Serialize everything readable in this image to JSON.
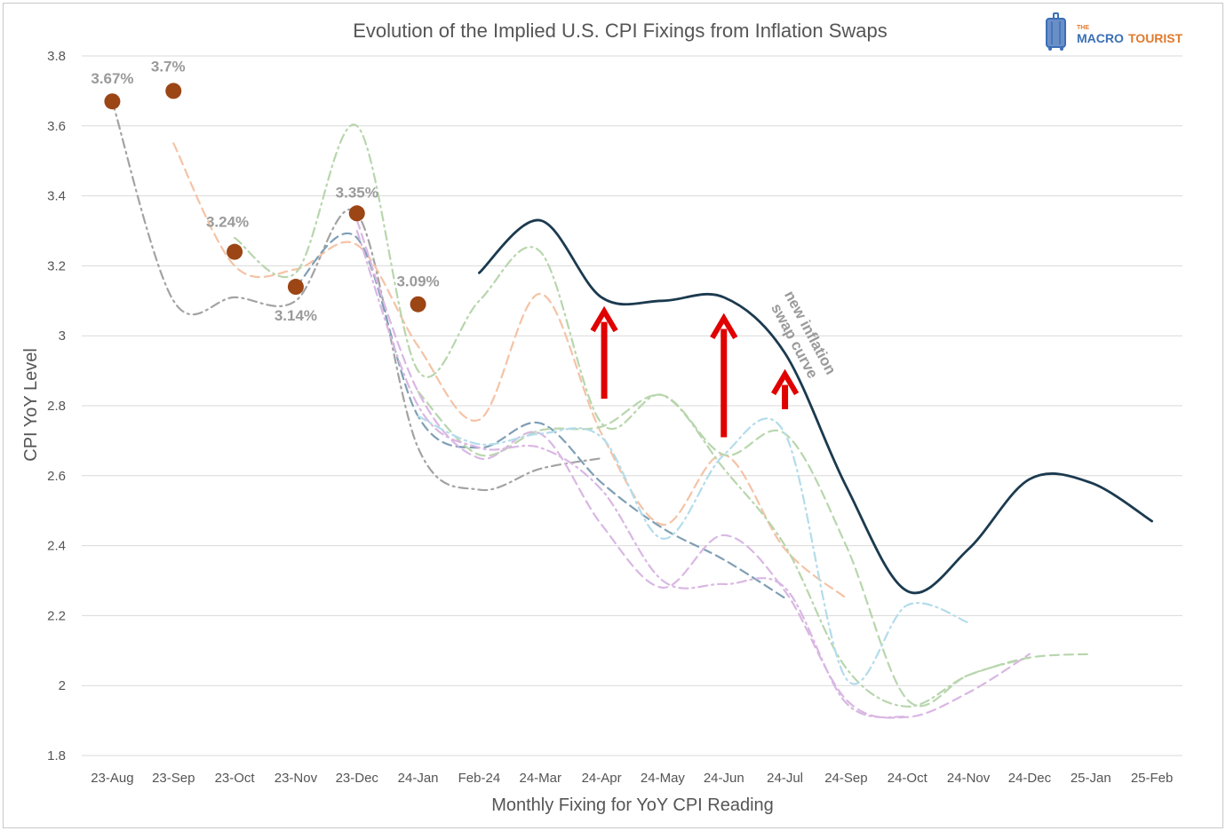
{
  "chart_data": {
    "type": "line",
    "title": "Evolution of the Implied U.S. CPI Fixings from Inflation Swaps",
    "xlabel": "Monthly Fixing for YoY CPI Reading",
    "ylabel": "CPI YoY Level",
    "ylim": [
      1.8,
      3.8
    ],
    "yticks": [
      "1.8",
      "2",
      "2.2",
      "2.4",
      "2.6",
      "2.8",
      "3",
      "3.2",
      "3.4",
      "3.6",
      "3.8"
    ],
    "grid": true,
    "categories": [
      "23-Aug",
      "23-Sep",
      "23-Oct",
      "23-Nov",
      "23-Dec",
      "24-Jan",
      "Feb-24",
      "24-Mar",
      "24-Apr",
      "24-May",
      "24-Jun",
      "24-Jul",
      "24-Sep",
      "24-Oct",
      "24-Nov",
      "24-Dec",
      "25-Jan",
      "25-Feb"
    ],
    "series": [
      {
        "color": "#a3a3a3",
        "dash": "10,5,2,5",
        "values": [
          3.67,
          3.1,
          3.11,
          3.1,
          3.35,
          2.68,
          2.56,
          2.62,
          2.65,
          null,
          null,
          null,
          null,
          null,
          null,
          null,
          null,
          null
        ]
      },
      {
        "color": "#f4c3a6",
        "dash": "10,6",
        "values": [
          null,
          3.55,
          3.2,
          3.19,
          3.26,
          2.97,
          2.76,
          3.12,
          2.72,
          2.46,
          2.66,
          2.39,
          2.25,
          null,
          null,
          null,
          null,
          null
        ]
      },
      {
        "color": "#b8d6ad",
        "dash": "10,5,2,5",
        "values": [
          null,
          null,
          3.28,
          3.18,
          3.6,
          2.9,
          3.1,
          3.24,
          2.75,
          2.83,
          2.62,
          2.4,
          2.05,
          1.94,
          2.03,
          2.08,
          null,
          null
        ]
      },
      {
        "color": "#7f9fb5",
        "dash": "10,6",
        "values": [
          null,
          null,
          null,
          3.14,
          3.28,
          2.77,
          2.68,
          2.75,
          2.58,
          2.45,
          2.36,
          2.25,
          null,
          null,
          null,
          null,
          null,
          null
        ]
      },
      {
        "color": "#b8d6ad",
        "dash": "10,6",
        "values": [
          null,
          null,
          null,
          null,
          null,
          2.84,
          2.66,
          2.73,
          2.74,
          2.83,
          2.66,
          2.72,
          2.4,
          1.96,
          2.03,
          2.08,
          2.09,
          null
        ]
      },
      {
        "color": "#d9b7e3",
        "dash": "10,6",
        "values": [
          null,
          null,
          null,
          null,
          3.33,
          2.84,
          2.65,
          2.72,
          2.46,
          2.28,
          2.43,
          2.27,
          1.96,
          1.91,
          1.98,
          2.09,
          null,
          null
        ]
      },
      {
        "color": "#d9b7e3",
        "dash": "10,5,2,5",
        "values": [
          null,
          null,
          null,
          null,
          3.3,
          2.8,
          2.68,
          2.68,
          2.56,
          2.3,
          2.29,
          2.28,
          1.95,
          1.91,
          null,
          null,
          null,
          null
        ]
      },
      {
        "color": "#b3dceb",
        "dash": "10,5,2,5",
        "values": [
          null,
          null,
          null,
          null,
          null,
          2.77,
          2.69,
          2.72,
          2.71,
          2.42,
          2.66,
          2.72,
          2.02,
          2.23,
          2.18,
          null,
          null,
          null
        ]
      },
      {
        "color": "#1b3a4f",
        "dash": "",
        "width": 2.8,
        "name": "new inflation swap curve",
        "values": [
          null,
          null,
          null,
          null,
          null,
          null,
          3.18,
          3.33,
          3.11,
          3.1,
          3.11,
          2.95,
          2.57,
          2.27,
          2.39,
          2.59,
          2.58,
          2.47
        ]
      }
    ],
    "markers": [
      {
        "x": "23-Aug",
        "y": 3.67,
        "label": "3.67%"
      },
      {
        "x": "23-Sep",
        "y": 3.7,
        "label": "3.7%"
      },
      {
        "x": "23-Oct",
        "y": 3.24,
        "label": "3.24%"
      },
      {
        "x": "23-Nov",
        "y": 3.14,
        "label": "3.14%"
      },
      {
        "x": "23-Dec",
        "y": 3.35,
        "label": "3.35%"
      },
      {
        "x": "24-Jan",
        "y": 3.09,
        "label": "3.09%"
      }
    ],
    "marker_color": "#9c4515",
    "arrows": [
      {
        "x": "24-Apr",
        "from": 2.82,
        "to": 3.07
      },
      {
        "x": "24-Jun",
        "from": 2.71,
        "to": 3.05
      },
      {
        "x": "24-Jul",
        "from": 2.79,
        "to": 2.89
      }
    ],
    "arrow_color": "#e00000",
    "annotation_lines": [
      "new inflation",
      "swap curve"
    ]
  },
  "logo": {
    "small": "THE",
    "part1": "MACRO",
    "part2": "TOURIST"
  }
}
